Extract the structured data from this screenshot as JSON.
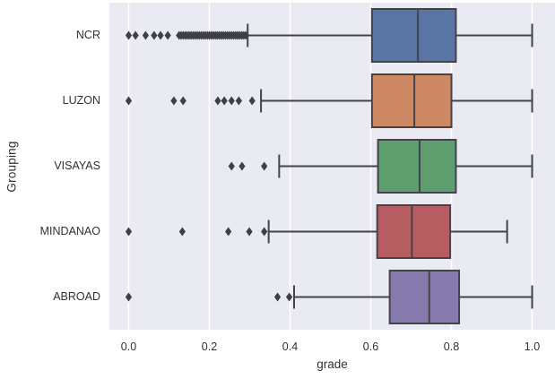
{
  "style": {
    "figure_bg": "#ffffff",
    "plot_bg": "#e9eaf2",
    "grid_color": "#ffffff",
    "line_color": "#43434b",
    "flier_color": "#3f3f47",
    "text_color": "#303036"
  },
  "chart_data": {
    "type": "boxplot",
    "orientation": "horizontal",
    "title": "",
    "xlabel": "grade",
    "ylabel": "Grouping",
    "grid": true,
    "xlim": [
      -0.048,
      1.056
    ],
    "xticks": [
      0.0,
      0.2,
      0.4,
      0.6,
      0.8,
      1.0
    ],
    "xtick_labels": [
      "0.0",
      "0.2",
      "0.4",
      "0.6",
      "0.8",
      "1.0"
    ],
    "categories": [
      "NCR",
      "LUZON",
      "VISAYAS",
      "MINDANAO",
      "ABROAD"
    ],
    "series": [
      {
        "name": "NCR",
        "color": "#5875A4",
        "whislo": 0.295,
        "q1": 0.603,
        "med": 0.717,
        "q3": 0.811,
        "whishi": 1.0,
        "outliers": [
          0.0,
          0.017,
          0.042,
          0.063,
          0.079,
          0.097,
          0.125,
          0.13,
          0.135,
          0.14,
          0.145,
          0.15,
          0.155,
          0.16,
          0.165,
          0.17,
          0.175,
          0.18,
          0.185,
          0.19,
          0.195,
          0.2,
          0.205,
          0.21,
          0.215,
          0.22,
          0.225,
          0.23,
          0.235,
          0.24,
          0.245,
          0.25,
          0.255,
          0.26,
          0.265,
          0.27,
          0.275,
          0.28,
          0.285,
          0.29
        ]
      },
      {
        "name": "LUZON",
        "color": "#CC8963",
        "whislo": 0.328,
        "q1": 0.603,
        "med": 0.708,
        "q3": 0.8,
        "whishi": 1.0,
        "outliers": [
          0.0,
          0.112,
          0.135,
          0.221,
          0.237,
          0.255,
          0.273,
          0.306
        ]
      },
      {
        "name": "VISAYAS",
        "color": "#5F9E6E",
        "whislo": 0.373,
        "q1": 0.618,
        "med": 0.721,
        "q3": 0.811,
        "whishi": 1.0,
        "outliers": [
          0.255,
          0.281,
          0.336
        ]
      },
      {
        "name": "MINDANAO",
        "color": "#B55D60",
        "whislo": 0.347,
        "q1": 0.616,
        "med": 0.702,
        "q3": 0.797,
        "whishi": 0.938,
        "outliers": [
          0.0,
          0.133,
          0.247,
          0.299,
          0.336
        ]
      },
      {
        "name": "ABROAD",
        "color": "#857AAB",
        "whislo": 0.41,
        "q1": 0.647,
        "med": 0.745,
        "q3": 0.819,
        "whishi": 1.0,
        "outliers": [
          0.0,
          0.369,
          0.398
        ]
      }
    ]
  }
}
